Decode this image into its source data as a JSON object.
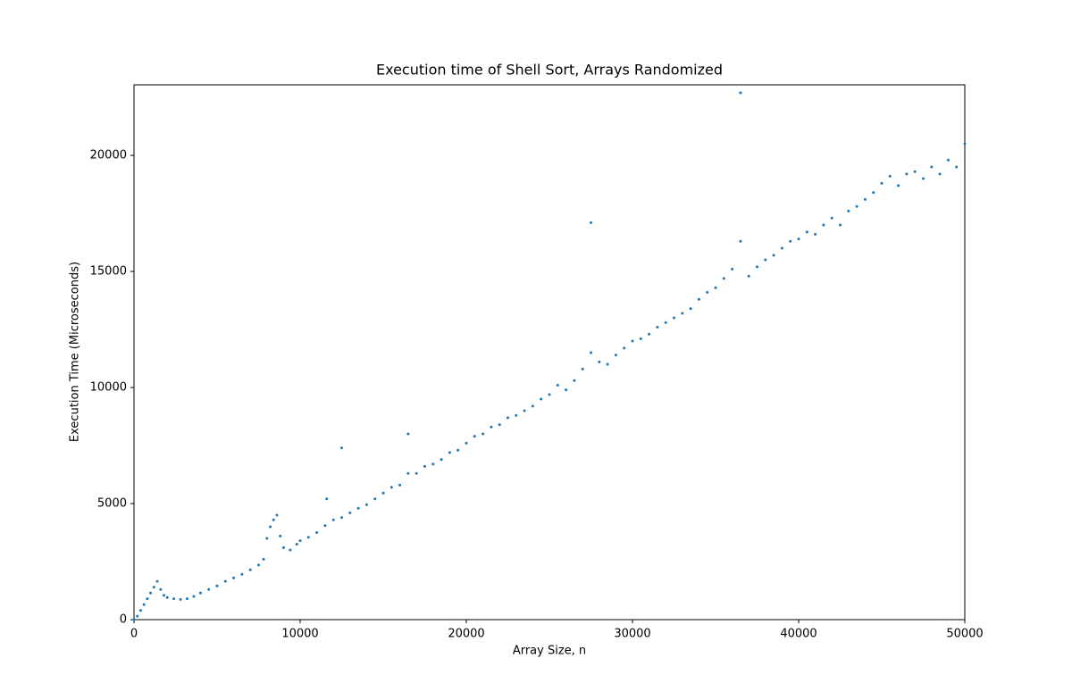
{
  "chart_data": {
    "type": "scatter",
    "title": "Execution time of Shell Sort, Arrays Randomized",
    "x_label": "Array Size, n",
    "y_label": "Execution Time (Microseconds)",
    "color": "#1f77b4",
    "xlim": [
      0,
      50000
    ],
    "ylim": [
      0,
      23040
    ],
    "xticks": [
      0,
      10000,
      20000,
      30000,
      40000,
      50000
    ],
    "yticks": [
      0,
      5000,
      10000,
      15000,
      20000
    ],
    "x": [
      0,
      200,
      400,
      600,
      800,
      1000,
      1200,
      1400,
      1600,
      1800,
      2000,
      2400,
      2800,
      3200,
      3600,
      4000,
      4500,
      5000,
      5500,
      6000,
      6500,
      7000,
      7500,
      7800,
      8000,
      8200,
      8400,
      8600,
      8800,
      9000,
      9400,
      9800,
      10000,
      10500,
      11000,
      11500,
      11600,
      12000,
      12500,
      12500,
      13000,
      13500,
      14000,
      14500,
      15000,
      15500,
      16000,
      16500,
      16500,
      17000,
      17500,
      18000,
      18500,
      19000,
      19500,
      20000,
      20500,
      21000,
      21500,
      22000,
      22500,
      23000,
      23500,
      24000,
      24500,
      25000,
      25500,
      26000,
      26500,
      27000,
      27500,
      27500,
      28000,
      28500,
      29000,
      29500,
      30000,
      30500,
      31000,
      31500,
      32000,
      32500,
      33000,
      33500,
      34000,
      34500,
      35000,
      35500,
      36000,
      36500,
      36500,
      37000,
      37500,
      38000,
      38500,
      39000,
      39500,
      40000,
      40500,
      41000,
      41500,
      42000,
      42500,
      43000,
      43500,
      44000,
      44500,
      45000,
      45500,
      46000,
      46500,
      47000,
      47500,
      48000,
      48500,
      49000,
      49500,
      50000
    ],
    "values": [
      0,
      150,
      400,
      650,
      900,
      1150,
      1400,
      1650,
      1300,
      1050,
      950,
      900,
      870,
      900,
      1000,
      1150,
      1300,
      1450,
      1650,
      1800,
      1950,
      2150,
      2350,
      2600,
      3500,
      4000,
      4300,
      4500,
      3600,
      3100,
      3000,
      3250,
      3400,
      3550,
      3750,
      4050,
      5200,
      4300,
      4400,
      7400,
      4600,
      4800,
      4950,
      5200,
      5450,
      5700,
      5800,
      6300,
      8000,
      6300,
      6600,
      6700,
      6900,
      7200,
      7300,
      7600,
      7900,
      8000,
      8300,
      8400,
      8700,
      8800,
      9000,
      9200,
      9500,
      9700,
      10100,
      9900,
      10300,
      10800,
      11500,
      17100,
      11100,
      11000,
      11400,
      11700,
      12000,
      12100,
      12300,
      12600,
      12800,
      13000,
      13200,
      13400,
      13800,
      14100,
      14300,
      14700,
      15100,
      16300,
      22700,
      14800,
      15200,
      15500,
      15700,
      16000,
      16300,
      16400,
      16700,
      16600,
      17000,
      17300,
      17000,
      17600,
      17800,
      18100,
      18400,
      18800,
      19100,
      18700,
      19200,
      19300,
      19000,
      19500,
      19200,
      19800,
      19500,
      20500
    ]
  }
}
